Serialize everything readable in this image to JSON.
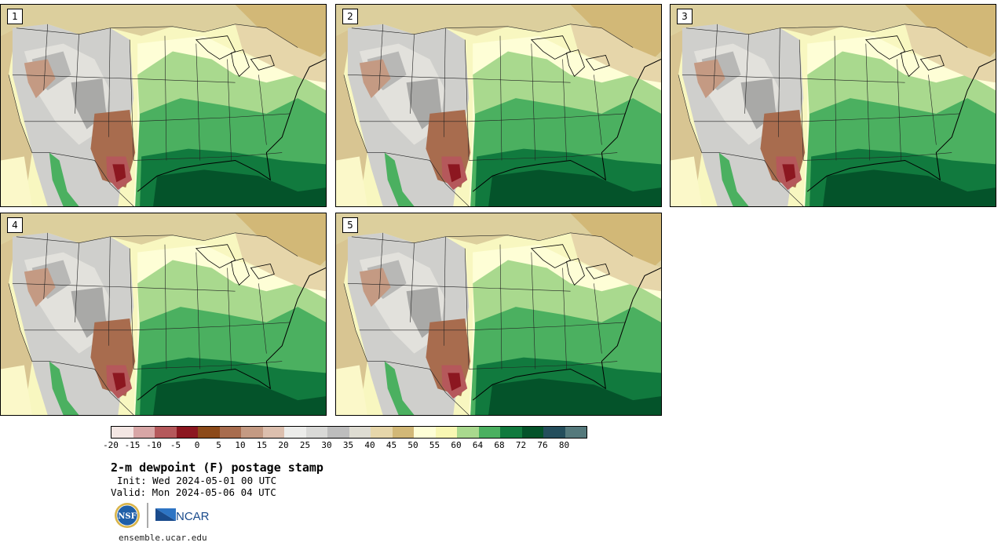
{
  "panels": [
    {
      "label": "1"
    },
    {
      "label": "2"
    },
    {
      "label": "3"
    },
    {
      "label": "4"
    },
    {
      "label": "5"
    }
  ],
  "legend": {
    "ticks": [
      "-20",
      "-15",
      "-10",
      "-5",
      "0",
      "5",
      "10",
      "15",
      "20",
      "25",
      "30",
      "35",
      "40",
      "45",
      "50",
      "55",
      "60",
      "64",
      "68",
      "72",
      "76",
      "80"
    ],
    "colors": [
      "#f3e6e3",
      "#d8a6a6",
      "#b5585b",
      "#8c1720",
      "#8c4a1a",
      "#a86c4e",
      "#c49a83",
      "#dcbfae",
      "#ececea",
      "#d9d9d7",
      "#bdbdbd",
      "#dedcd2",
      "#e6d6aa",
      "#d2b877",
      "#fefed6",
      "#f8f7b3",
      "#a9d98e",
      "#4bb060",
      "#117a3e",
      "#04532a",
      "#244e5c",
      "#54797c"
    ]
  },
  "title": "2-m dewpoint (F) postage stamp",
  "init": "Init: Wed 2024-05-01 00 UTC",
  "valid": "Valid: Mon 2024-05-06 04 UTC",
  "logos": {
    "nsf": "NSF",
    "ncar": "NCAR"
  },
  "website": "ensemble.ucar.edu",
  "icons": {
    "nsf": "nsf-logo-icon",
    "ncar": "ncar-logo-icon"
  }
}
